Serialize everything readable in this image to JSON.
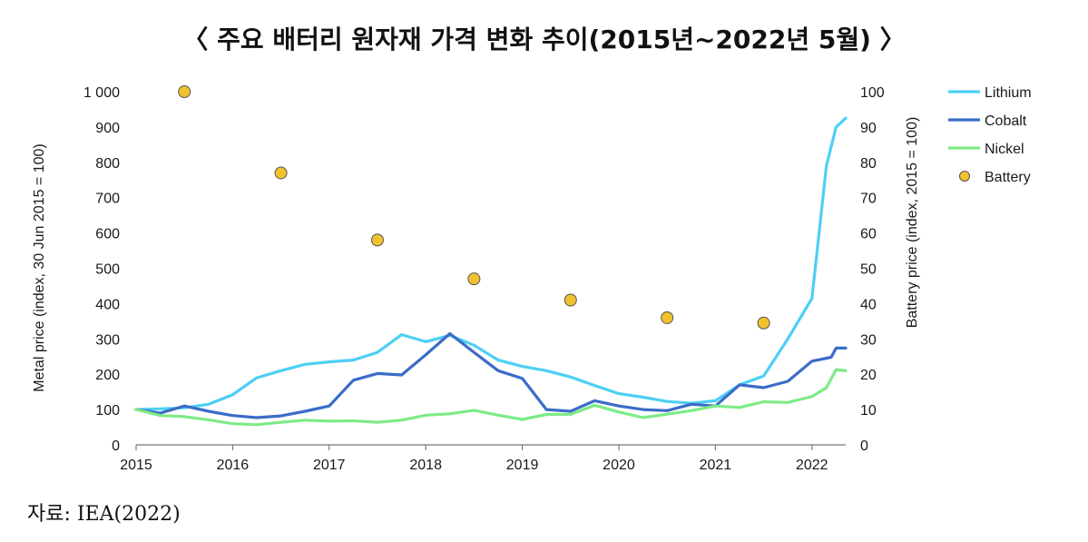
{
  "title": "〈 주요 배터리 원자재 가격 변화 추이(2015년~2022년 5월) 〉",
  "source": "자료: IEA(2022)",
  "chart_data": {
    "type": "line",
    "ylabel_left": "Metal price (index, 30 Jun 2015 = 100)",
    "ylabel_right": "Battery price (index, 2015 = 100)",
    "xlim": [
      2015,
      2022.35
    ],
    "ylim_left": [
      0,
      1000
    ],
    "ylim_right": [
      0,
      100
    ],
    "x_ticks": [
      2015,
      2016,
      2017,
      2018,
      2019,
      2020,
      2021,
      2022
    ],
    "y_ticks_left": [
      "0",
      "100",
      "200",
      "300",
      "400",
      "500",
      "600",
      "700",
      "800",
      "900",
      "1 000"
    ],
    "y_ticks_left_values": [
      0,
      100,
      200,
      300,
      400,
      500,
      600,
      700,
      800,
      900,
      1000
    ],
    "y_ticks_right": [
      0,
      10,
      20,
      30,
      40,
      50,
      60,
      70,
      80,
      90,
      100
    ],
    "grid": false,
    "legend_position": "right",
    "series": [
      {
        "name": "Lithium",
        "color": "#4DCFF5",
        "axis": "left",
        "x": [
          2015,
          2015.25,
          2015.5,
          2015.75,
          2016,
          2016.25,
          2016.5,
          2016.75,
          2017,
          2017.25,
          2017.5,
          2017.75,
          2018,
          2018.25,
          2018.5,
          2018.75,
          2019,
          2019.25,
          2019.5,
          2019.75,
          2020,
          2020.25,
          2020.5,
          2020.75,
          2021,
          2021.25,
          2021.5,
          2021.75,
          2022,
          2022.15,
          2022.25,
          2022.35
        ],
        "y": [
          100,
          102,
          105,
          115,
          142,
          190,
          210,
          228,
          235,
          240,
          262,
          312,
          292,
          310,
          282,
          240,
          222,
          210,
          192,
          168,
          145,
          135,
          123,
          118,
          125,
          170,
          195,
          300,
          415,
          790,
          900,
          925
        ]
      },
      {
        "name": "Cobalt",
        "color": "#3B6CC8",
        "axis": "left",
        "x": [
          2015,
          2015.25,
          2015.5,
          2015.75,
          2016,
          2016.25,
          2016.5,
          2016.75,
          2017,
          2017.25,
          2017.5,
          2017.75,
          2018,
          2018.25,
          2018.5,
          2018.75,
          2019,
          2019.25,
          2019.5,
          2019.75,
          2020,
          2020.25,
          2020.5,
          2020.75,
          2021,
          2021.25,
          2021.5,
          2021.75,
          2022,
          2022.2,
          2022.25,
          2022.35
        ],
        "y": [
          100,
          90,
          110,
          95,
          83,
          77,
          82,
          95,
          110,
          183,
          202,
          198,
          255,
          315,
          262,
          210,
          188,
          100,
          95,
          125,
          110,
          100,
          97,
          115,
          110,
          170,
          162,
          180,
          237,
          248,
          274,
          274
        ]
      },
      {
        "name": "Nickel",
        "color": "#7DEB86",
        "axis": "left",
        "x": [
          2015,
          2015.25,
          2015.5,
          2015.75,
          2016,
          2016.25,
          2016.5,
          2016.75,
          2017,
          2017.25,
          2017.5,
          2017.75,
          2018,
          2018.25,
          2018.5,
          2018.75,
          2019,
          2019.25,
          2019.5,
          2019.75,
          2020,
          2020.25,
          2020.5,
          2020.75,
          2021,
          2021.25,
          2021.5,
          2021.75,
          2022,
          2022.15,
          2022.25,
          2022.35
        ],
        "y": [
          100,
          83,
          80,
          71,
          60,
          57,
          64,
          70,
          67,
          68,
          64,
          70,
          84,
          88,
          98,
          84,
          72,
          86,
          86,
          112,
          93,
          77,
          87,
          97,
          110,
          106,
          122,
          120,
          137,
          162,
          213,
          210
        ]
      },
      {
        "name": "Battery",
        "color": "#F2C12E",
        "axis": "right",
        "marker": "circle",
        "x": [
          2015.5,
          2016.5,
          2017.5,
          2018.5,
          2019.5,
          2020.5,
          2021.5
        ],
        "y": [
          100,
          77,
          58,
          47,
          41,
          36,
          34.5
        ]
      }
    ]
  }
}
